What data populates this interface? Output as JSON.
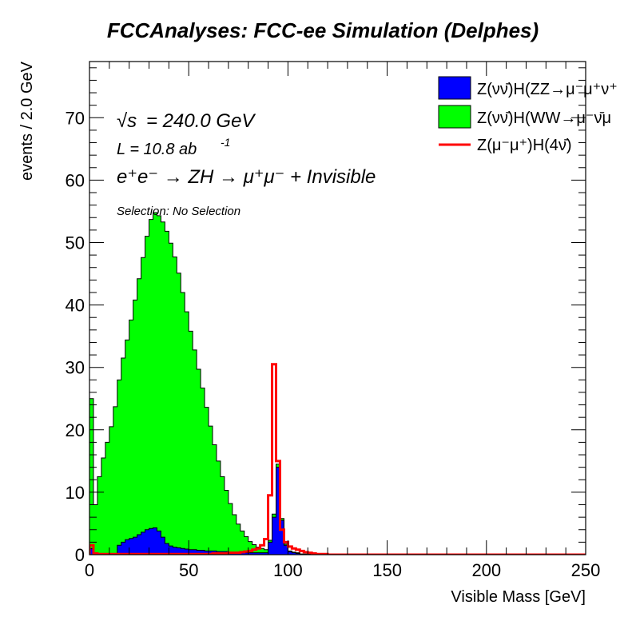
{
  "title": "FCCAnalyses: FCC-ee Simulation (Delphes)",
  "annotations": {
    "sqrt_s": "= 240.0 GeV",
    "sqrt_symbol": "√s",
    "lumi_prefix": "L = 10.8 ab",
    "lumi_exp": "-1",
    "process": "e⁺e⁻ → ZH → μ⁺μ⁻ + Invisible",
    "selection": "Selection: No Selection"
  },
  "colors": {
    "zz": "#0000ff",
    "ww": "#00ff00",
    "signal": "#ff0000",
    "axis": "#000000"
  },
  "chart_data": {
    "type": "bar",
    "histogram": true,
    "xlabel": "Visible Mass [GeV]",
    "ylabel": "events / 2.0 GeV",
    "xlim": [
      0,
      250
    ],
    "ylim": [
      0,
      79
    ],
    "bin_width": 2,
    "x_ticks": [
      0,
      50,
      100,
      150,
      200,
      250
    ],
    "y_ticks": [
      0,
      10,
      20,
      30,
      40,
      50,
      60,
      70
    ],
    "legend_position": "top-right",
    "series": [
      {
        "name": "Z(νν̄)H(ZZ→μ⁻μ⁺ν⁺",
        "style": "stacked-fill",
        "color": "#0000ff",
        "values": [
          1.0,
          0,
          0,
          0,
          0,
          0,
          0.2,
          1.5,
          2.0,
          2.4,
          2.6,
          2.8,
          3.2,
          3.6,
          4.0,
          4.2,
          4.3,
          3.8,
          2.8,
          1.8,
          1.4,
          1.2,
          1.1,
          1.0,
          0.9,
          0.8,
          0.8,
          0.7,
          0.7,
          0.6,
          0.6,
          0.6,
          0.5,
          0.5,
          0.5,
          0.4,
          0.4,
          0.4,
          0.3,
          0.3,
          0.3,
          0.3,
          0.3,
          0.3,
          0.3,
          2.0,
          6.0,
          14.0,
          5.5,
          1.5,
          0.5,
          0.3,
          0.2,
          0.1,
          0.1,
          0.1,
          0.1,
          0,
          0,
          0,
          0,
          0,
          0,
          0,
          0,
          0,
          0,
          0,
          0,
          0,
          0,
          0,
          0,
          0,
          0,
          0,
          0,
          0,
          0,
          0,
          0,
          0,
          0,
          0,
          0,
          0,
          0,
          0,
          0,
          0,
          0,
          0,
          0,
          0,
          0,
          0,
          0,
          0,
          0,
          0,
          0,
          0,
          0,
          0,
          0,
          0,
          0,
          0,
          0,
          0,
          0,
          0,
          0,
          0,
          0,
          0,
          0,
          0,
          0,
          0,
          0,
          0,
          0,
          0,
          0,
          0
        ]
      },
      {
        "name": "Z(νν̄)H(WW→μ⁻ν̄μ",
        "style": "stacked-fill",
        "color": "#00ff00",
        "values": [
          24.0,
          8.0,
          12.5,
          15.5,
          18.0,
          20.5,
          23.5,
          26.5,
          29.5,
          32.0,
          35.0,
          38.0,
          41.0,
          44.0,
          47.0,
          49.5,
          50.5,
          50.5,
          50.5,
          50.0,
          48.5,
          46.5,
          44.0,
          41.0,
          38.0,
          35.0,
          32.0,
          29.0,
          26.0,
          23.0,
          20.0,
          17.0,
          14.5,
          12.0,
          9.8,
          7.8,
          6.0,
          4.5,
          3.5,
          2.6,
          1.8,
          1.3,
          0.9,
          0.7,
          0.5,
          0.3,
          0.5,
          0.5,
          0.3,
          0.2,
          0.1,
          0.1,
          0.1,
          0,
          0,
          0,
          0,
          0,
          0,
          0,
          0,
          0,
          0,
          0,
          0,
          0,
          0,
          0,
          0,
          0,
          0,
          0,
          0,
          0,
          0,
          0,
          0,
          0,
          0,
          0,
          0,
          0,
          0,
          0,
          0,
          0,
          0,
          0,
          0,
          0,
          0,
          0,
          0,
          0,
          0,
          0,
          0,
          0,
          0,
          0,
          0,
          0,
          0,
          0,
          0,
          0,
          0,
          0,
          0,
          0,
          0,
          0,
          0,
          0,
          0,
          0,
          0,
          0,
          0,
          0,
          0,
          0,
          0,
          0,
          0,
          0,
          0,
          0,
          0,
          0
        ]
      },
      {
        "name": "Z(μ⁻μ⁺)H(4ν̄)",
        "style": "line",
        "color": "#ff0000",
        "values": [
          1.5,
          0.2,
          0.1,
          0.1,
          0.1,
          0.1,
          0.1,
          0.1,
          0.1,
          0.1,
          0.1,
          0.1,
          0.1,
          0.1,
          0.1,
          0.1,
          0.1,
          0.1,
          0.1,
          0.1,
          0.1,
          0.1,
          0.1,
          0.1,
          0.1,
          0.1,
          0.1,
          0.1,
          0.1,
          0.1,
          0.1,
          0.2,
          0.2,
          0.2,
          0.2,
          0.3,
          0.3,
          0.3,
          0.4,
          0.5,
          0.6,
          0.8,
          1.0,
          1.5,
          2.5,
          9.5,
          30.5,
          15.0,
          4.0,
          2.0,
          1.3,
          1.0,
          0.8,
          0.6,
          0.4,
          0.3,
          0.2,
          0.1,
          0.1,
          0.1,
          0,
          0,
          0,
          0,
          0,
          0,
          0,
          0,
          0,
          0,
          0,
          0,
          0,
          0,
          0,
          0,
          0,
          0,
          0,
          0,
          0,
          0,
          0,
          0,
          0,
          0,
          0,
          0,
          0,
          0,
          0,
          0,
          0,
          0,
          0,
          0,
          0,
          0,
          0,
          0,
          0,
          0,
          0,
          0,
          0,
          0,
          0,
          0,
          0,
          0,
          0,
          0,
          0,
          0,
          0,
          0,
          0,
          0,
          0,
          0,
          0,
          0,
          0,
          0,
          0
        ]
      }
    ]
  }
}
